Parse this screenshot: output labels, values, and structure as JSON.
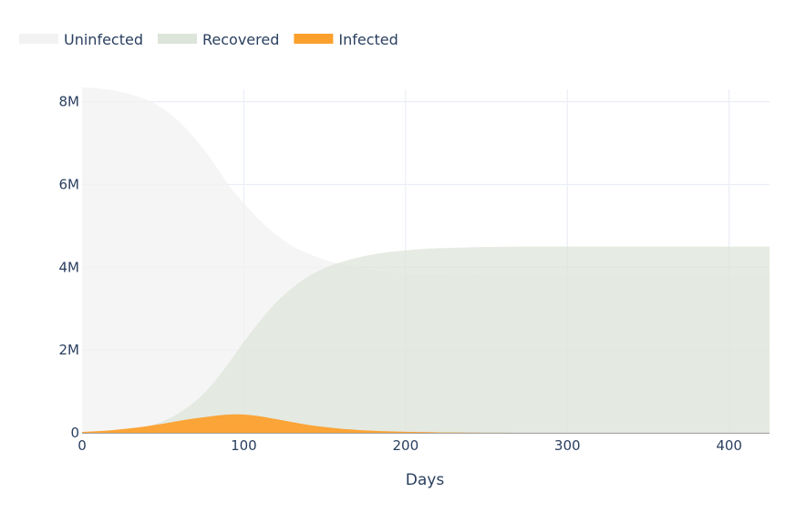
{
  "chart_data": {
    "type": "area",
    "xlabel": "Days",
    "ylabel": "",
    "xlim": [
      0,
      425
    ],
    "ylim": [
      0,
      8300000
    ],
    "grid": true,
    "legend_position": "top-left",
    "x_ticks": [
      0,
      100,
      200,
      300,
      400
    ],
    "x_tick_labels": [
      "0",
      "100",
      "200",
      "300",
      "400"
    ],
    "y_ticks": [
      0,
      2000000,
      4000000,
      6000000,
      8000000
    ],
    "y_tick_labels": [
      "0",
      "2M",
      "4M",
      "6M",
      "8M"
    ],
    "x": [
      0,
      10,
      20,
      30,
      40,
      50,
      60,
      70,
      80,
      90,
      100,
      110,
      120,
      130,
      140,
      150,
      160,
      170,
      180,
      190,
      200,
      210,
      220,
      230,
      240,
      250,
      275,
      300,
      325,
      350,
      375,
      400,
      425
    ],
    "series": [
      {
        "name": "Uninfected",
        "color": "#f2f2f2",
        "values": [
          8350000,
          8320000,
          8270000,
          8180000,
          8040000,
          7830000,
          7520000,
          7100000,
          6600000,
          6020000,
          5550000,
          5130000,
          4790000,
          4510000,
          4330000,
          4180000,
          4080000,
          3990000,
          3930000,
          3880000,
          3850000,
          3830000,
          3820000,
          3810000,
          3810000,
          3810000,
          3800000,
          3800000,
          3800000,
          3800000,
          3800000,
          3800000,
          3800000
        ]
      },
      {
        "name": "Recovered",
        "color": "#dde4d9",
        "values": [
          0,
          10000,
          30000,
          80000,
          150000,
          280000,
          480000,
          760000,
          1150000,
          1650000,
          2200000,
          2700000,
          3150000,
          3500000,
          3780000,
          3980000,
          4120000,
          4230000,
          4310000,
          4370000,
          4410000,
          4440000,
          4460000,
          4470000,
          4480000,
          4490000,
          4500000,
          4500000,
          4500000,
          4500000,
          4500000,
          4500000,
          4500000
        ]
      },
      {
        "name": "Infected",
        "color": "#fca02d",
        "values": [
          20000,
          40000,
          70000,
          110000,
          160000,
          220000,
          290000,
          350000,
          400000,
          440000,
          440000,
          400000,
          330000,
          260000,
          190000,
          140000,
          100000,
          70000,
          50000,
          35000,
          25000,
          18000,
          12000,
          8000,
          5000,
          3000,
          1000,
          500,
          300,
          200,
          100,
          50,
          0
        ]
      }
    ]
  }
}
